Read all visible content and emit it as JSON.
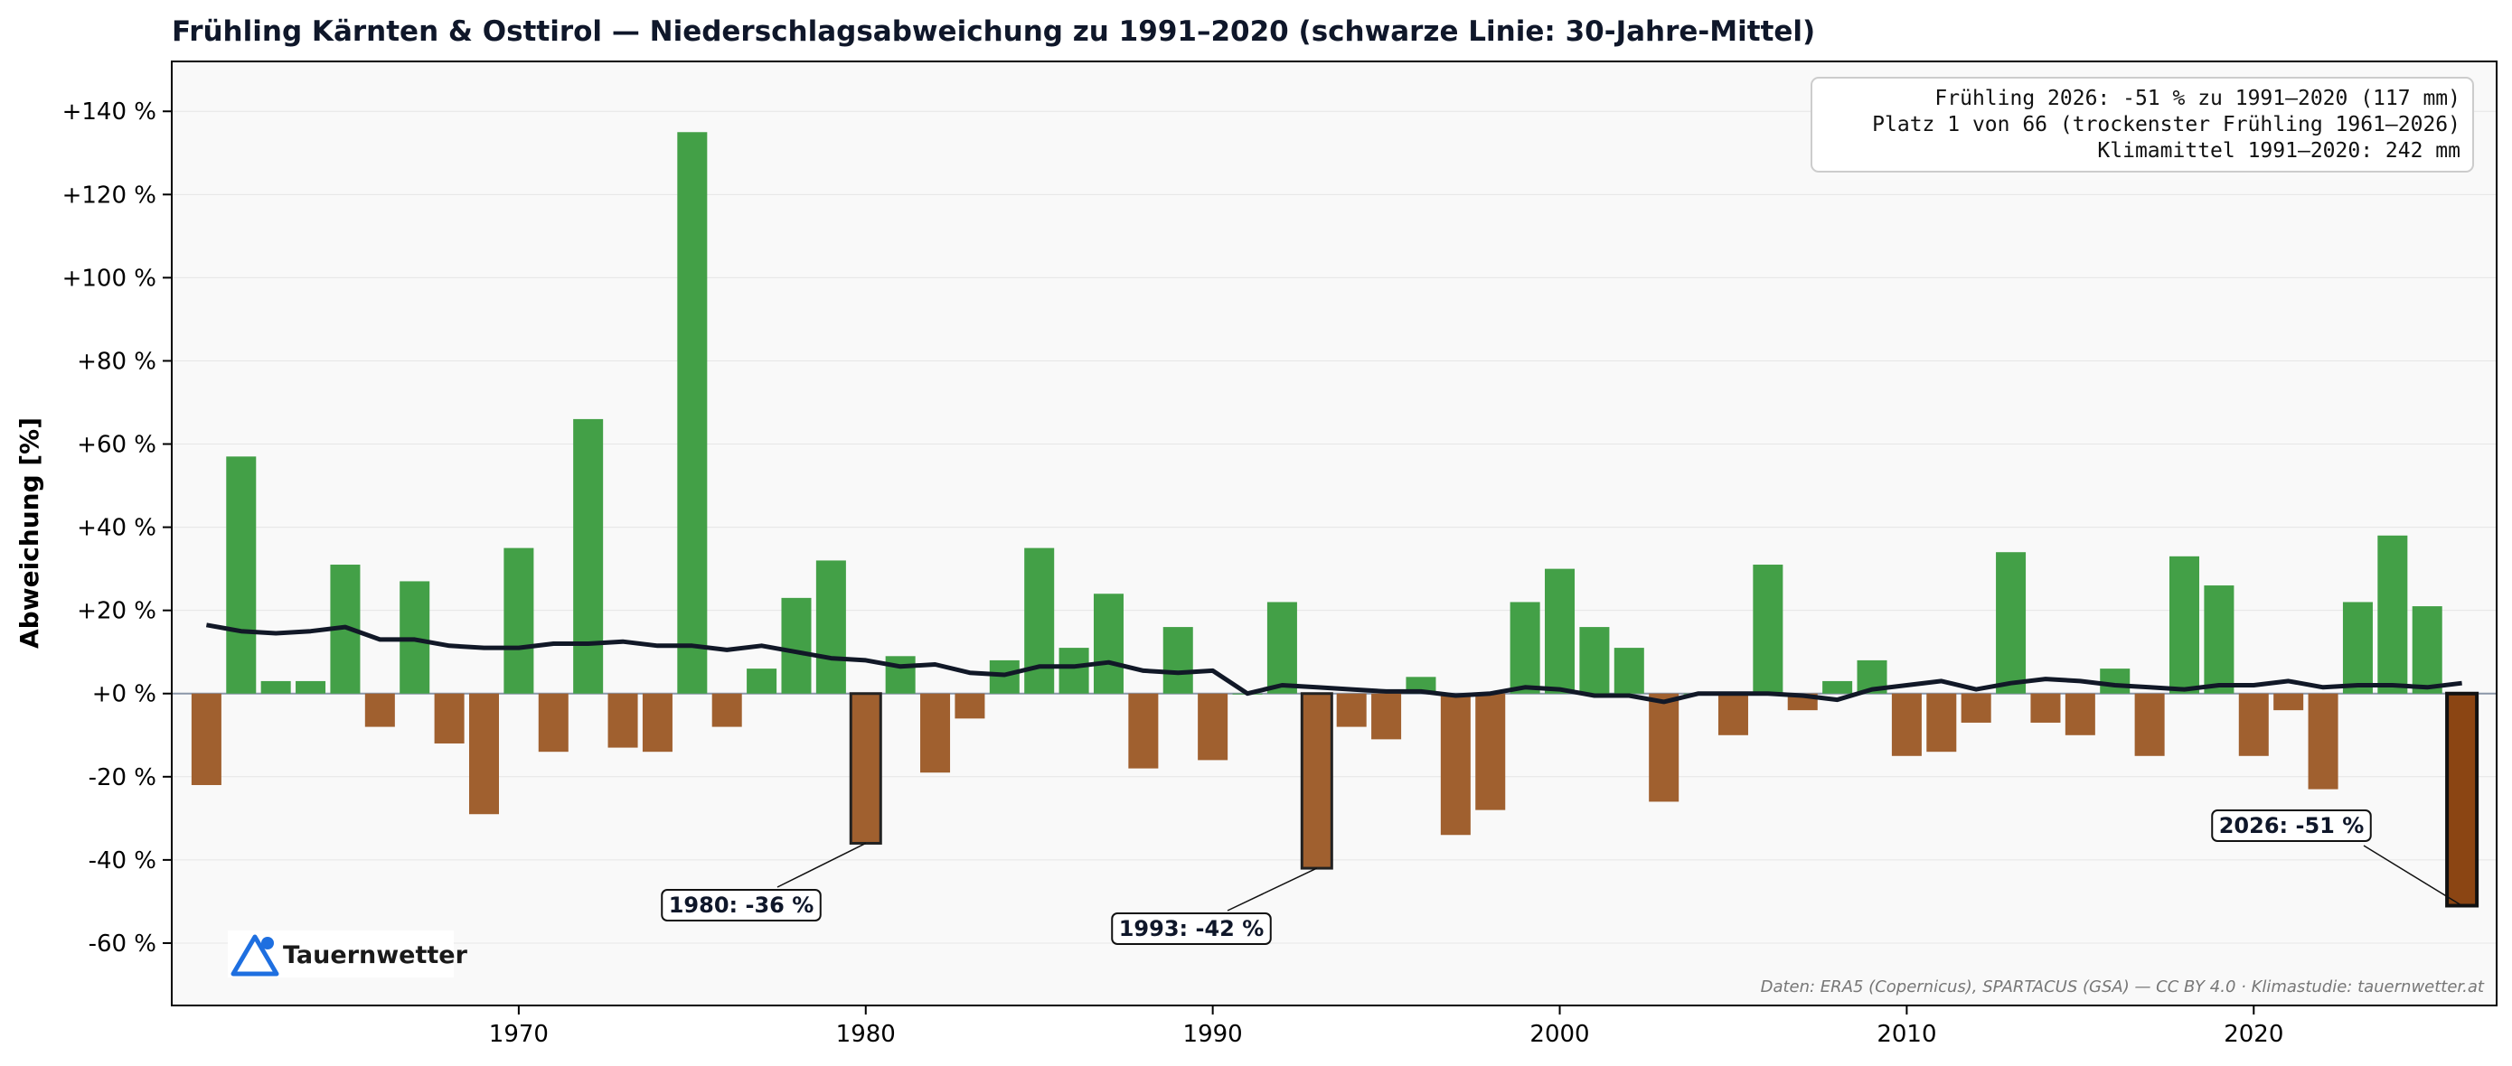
{
  "chart_data": {
    "type": "bar",
    "title": "Frühling Kärnten & Osttirol — Niederschlagsabweichung zu 1991–2020 (schwarze Linie: 30-Jahre-Mittel)",
    "ylabel": "Abweichung [%]",
    "xlabel": "",
    "xlim": [
      1960,
      2027
    ],
    "ylim": [
      -75,
      152
    ],
    "xticks": [
      1970,
      1980,
      1990,
      2000,
      2010,
      2020
    ],
    "yticks": [
      -60,
      -40,
      -20,
      0,
      20,
      40,
      60,
      80,
      100,
      120,
      140
    ],
    "ytick_labels": [
      "-60 %",
      "-40 %",
      "-20 %",
      "+0 %",
      "+20 %",
      "+40 %",
      "+60 %",
      "+80 %",
      "+100 %",
      "+120 %",
      "+140 %"
    ],
    "grid": true,
    "colors": {
      "positive": "#43a047",
      "negative": "#a0602f",
      "highlight": "#8b4513",
      "mean_line": "#111827",
      "plot_bg": "#f9f9f9"
    },
    "years": [
      1961,
      1962,
      1963,
      1964,
      1965,
      1966,
      1967,
      1968,
      1969,
      1970,
      1971,
      1972,
      1973,
      1974,
      1975,
      1976,
      1977,
      1978,
      1979,
      1980,
      1981,
      1982,
      1983,
      1984,
      1985,
      1986,
      1987,
      1988,
      1989,
      1990,
      1991,
      1992,
      1993,
      1994,
      1995,
      1996,
      1997,
      1998,
      1999,
      2000,
      2001,
      2002,
      2003,
      2004,
      2005,
      2006,
      2007,
      2008,
      2009,
      2010,
      2011,
      2012,
      2013,
      2014,
      2015,
      2016,
      2017,
      2018,
      2019,
      2020,
      2021,
      2022,
      2023,
      2024,
      2025,
      2026
    ],
    "values": [
      -22,
      57,
      3,
      3,
      31,
      -8,
      27,
      -12,
      -29,
      35,
      -14,
      66,
      -13,
      -14,
      135,
      -8,
      6,
      23,
      32,
      -36,
      9,
      -19,
      -6,
      8,
      35,
      11,
      24,
      -18,
      16,
      -16,
      0,
      22,
      -42,
      -8,
      -11,
      4,
      -34,
      -28,
      22,
      30,
      16,
      11,
      -26,
      0,
      -10,
      31,
      -4,
      3,
      8,
      -15,
      -14,
      -7,
      34,
      -7,
      -10,
      6,
      -15,
      33,
      26,
      -15,
      -4,
      -23,
      22,
      38,
      21,
      -51
    ],
    "mean_line": {
      "name": "30-Jahre-Mittel",
      "values": [
        16.5,
        15,
        14.5,
        15,
        16,
        13,
        13,
        11.5,
        11,
        11,
        12,
        12,
        12.5,
        11.5,
        11.5,
        10.5,
        11.5,
        10,
        8.5,
        8,
        6.5,
        7,
        5,
        4.5,
        6.5,
        6.5,
        7.5,
        5.5,
        5,
        5.5,
        0,
        2,
        1.5,
        1,
        0.5,
        0.5,
        -0.5,
        0,
        1.5,
        1,
        -0.5,
        -0.5,
        -2,
        0,
        0,
        0,
        -0.5,
        -1.5,
        1,
        2,
        3,
        1,
        2.5,
        3.5,
        3,
        2,
        1.5,
        1,
        2,
        2,
        3,
        1.5,
        2,
        2,
        1.5,
        2.5
      ]
    },
    "annotations": [
      {
        "year": 1980,
        "value": -36,
        "label": "1980: -36 %"
      },
      {
        "year": 1993,
        "value": -42,
        "label": "1993: -42 %"
      },
      {
        "year": 2026,
        "value": -51,
        "label": "2026: -51 %"
      }
    ],
    "info_box": [
      "Frühling 2026: -51 % zu 1991–2020 (117 mm)",
      "Platz 1 von 66 (trockenster Frühling 1961–2026)",
      "Klimamittel 1991–2020: 242 mm"
    ],
    "info_box_position": "top-right",
    "logo": "Tauernwetter",
    "footer": "Daten: ERA5 (Copernicus), SPARTACUS (GSA) — CC BY 4.0  ·  Klimastudie: tauernwetter.at"
  }
}
